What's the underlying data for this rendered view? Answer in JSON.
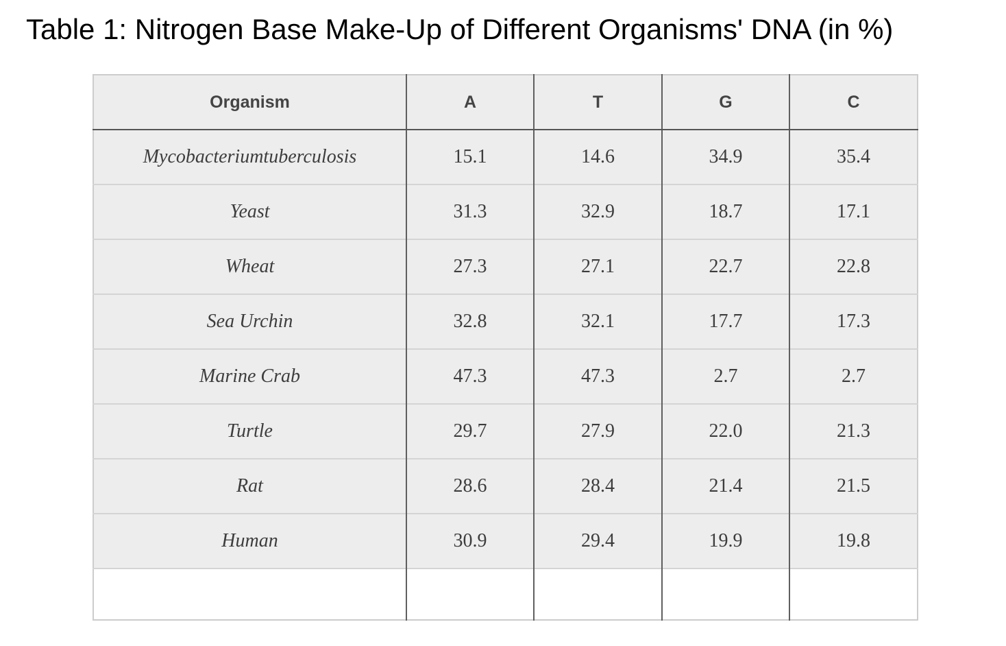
{
  "title": "Table 1: Nitrogen Base Make-Up of Different Organisms' DNA (in %)",
  "table": {
    "columns": [
      "Organism",
      "A",
      "T",
      "G",
      "C"
    ],
    "rows": [
      {
        "organism": "Mycobacteriumtuberculosis",
        "values": [
          "15.1",
          "14.6",
          "34.9",
          "35.4"
        ]
      },
      {
        "organism": "Yeast",
        "values": [
          "31.3",
          "32.9",
          "18.7",
          "17.1"
        ]
      },
      {
        "organism": "Wheat",
        "values": [
          "27.3",
          "27.1",
          "22.7",
          "22.8"
        ]
      },
      {
        "organism": "Sea Urchin",
        "values": [
          "32.8",
          "32.1",
          "17.7",
          "17.3"
        ]
      },
      {
        "organism": "Marine Crab",
        "values": [
          "47.3",
          "47.3",
          "2.7",
          "2.7"
        ]
      },
      {
        "organism": "Turtle",
        "values": [
          "29.7",
          "27.9",
          "22.0",
          "21.3"
        ]
      },
      {
        "organism": "Rat",
        "values": [
          "28.6",
          "28.4",
          "21.4",
          "21.5"
        ]
      },
      {
        "organism": "Human",
        "values": [
          "30.9",
          "29.4",
          "19.9",
          "19.8"
        ]
      },
      {
        "organism": "",
        "values": [
          "",
          "",
          "",
          ""
        ]
      }
    ]
  },
  "colors": {
    "cell_background": "#ededed",
    "empty_row_background": "#ffffff",
    "outer_border": "#cccccc",
    "column_divider": "#5f5f5f",
    "header_divider": "#555555",
    "row_divider": "#d4d4d4",
    "header_text": "#444444",
    "body_text": "#3d3d3d",
    "title_text": "#000000"
  }
}
